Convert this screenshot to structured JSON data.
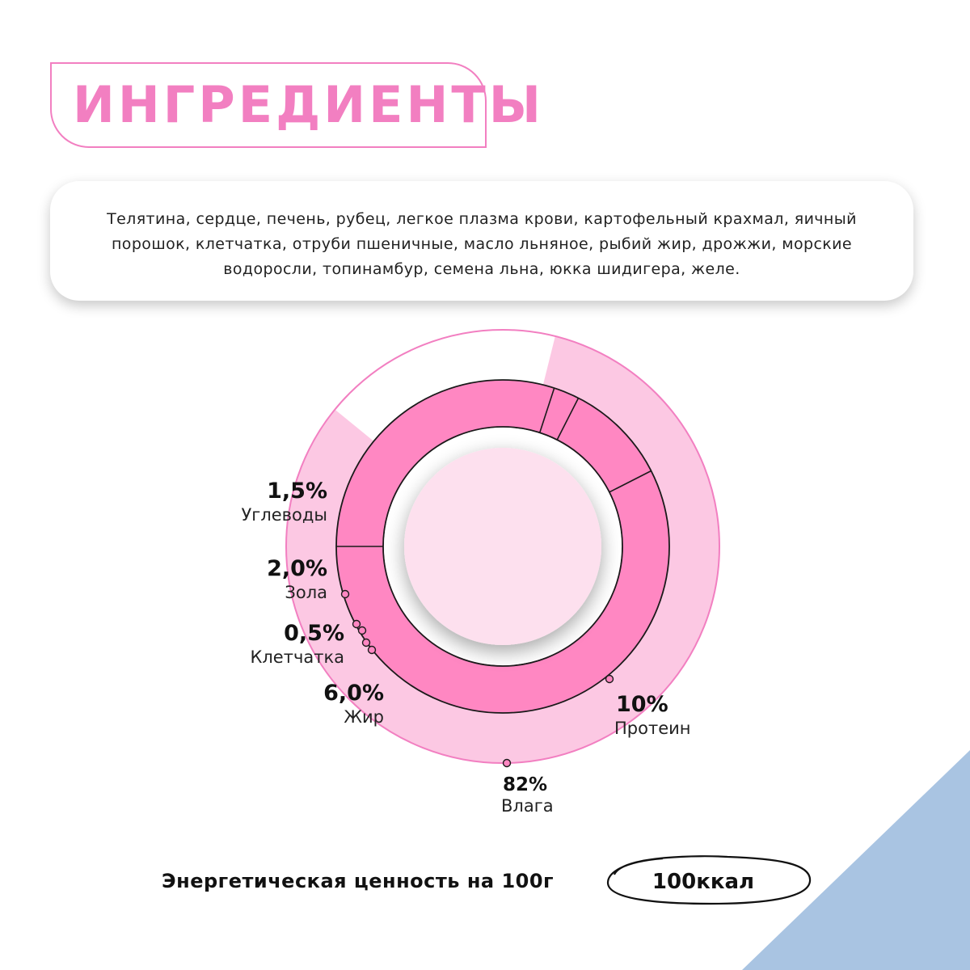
{
  "title": "ИНГРЕДИЕНТЫ",
  "ingredients": "Телятина, сердце, печень, рубец, легкое плазма крови, картофельный крахмал, яичный порошок, клетчатка, отруби пшеничные,  масло льняное, рыбий жир, дрожжи, морские водоросли, топинамбур, семена льна, юкка шидигера, желе.",
  "colors": {
    "accent": "#f27fc1",
    "outer_fill": "#fcc8e3",
    "inner_ring": "#ff87c2",
    "center_fill": "#fde0ee",
    "corner_blue": "#a9c4e2"
  },
  "chart_data": {
    "type": "donut",
    "series": [
      {
        "ring": "outer",
        "slices": [
          {
            "label": "Влага",
            "value": 82,
            "display": "82%"
          },
          {
            "label": "",
            "value": 18,
            "display": ""
          }
        ]
      },
      {
        "ring": "inner",
        "slices": [
          {
            "label": "Протеин",
            "value": 10,
            "display": "10%"
          },
          {
            "label": "Жир",
            "value": 6.0,
            "display": "6,0%"
          },
          {
            "label": "Клетчатка",
            "value": 0.5,
            "display": "0,5%"
          },
          {
            "label": "Зола",
            "value": 2.0,
            "display": "2,0%"
          },
          {
            "label": "Углеводы",
            "value": 1.5,
            "display": "1,5%"
          }
        ]
      }
    ]
  },
  "labels": {
    "carbs": {
      "pct": "1,5%",
      "name": "Углеводы"
    },
    "ash": {
      "pct": "2,0%",
      "name": "Зола"
    },
    "fiber": {
      "pct": "0,5%",
      "name": "Клетчатка"
    },
    "fat": {
      "pct": "6,0%",
      "name": "Жир"
    },
    "protein": {
      "pct": "10%",
      "name": "Протеин"
    },
    "moisture": {
      "pct": "82%",
      "name": "Влага"
    }
  },
  "energy": {
    "label": "Энергетическая ценность на 100г",
    "value": "100ккал"
  }
}
